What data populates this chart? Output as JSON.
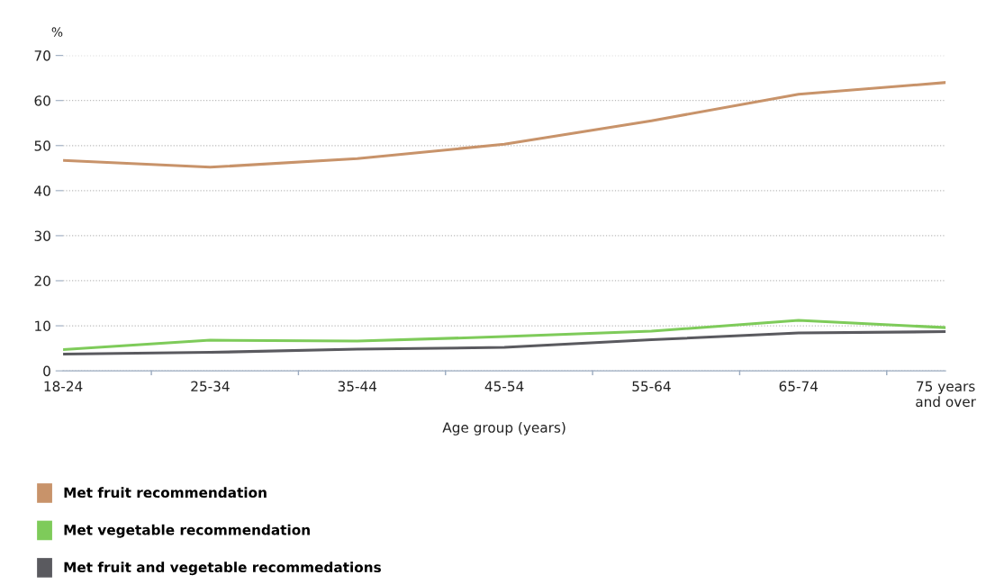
{
  "chart_data": {
    "type": "line",
    "ylabel": "%",
    "xlabel": "Age group (years)",
    "categories": [
      "18-24",
      "25-34",
      "35-44",
      "45-54",
      "55-64",
      "65-74",
      "75 years\nand over"
    ],
    "series": [
      {
        "name": "Met fruit recommendation",
        "color": "#c8936a",
        "values": [
          46.7,
          45.2,
          47.1,
          50.3,
          55.5,
          61.4,
          64.0
        ]
      },
      {
        "name": "Met vegetable recommendation",
        "color": "#7ecb5a",
        "values": [
          4.7,
          6.8,
          6.6,
          7.6,
          8.8,
          11.2,
          9.6
        ]
      },
      {
        "name": "Met fruit and vegetable recommedations",
        "color": "#5a5a5f",
        "values": [
          3.7,
          4.1,
          4.8,
          5.2,
          6.9,
          8.4,
          8.7
        ]
      }
    ],
    "ylim": [
      0,
      70
    ],
    "yticks": [
      0,
      10,
      20,
      30,
      40,
      50,
      60,
      70
    ],
    "grid": "y",
    "legend": "bottom left",
    "marker": "none",
    "line_style": "solid"
  }
}
